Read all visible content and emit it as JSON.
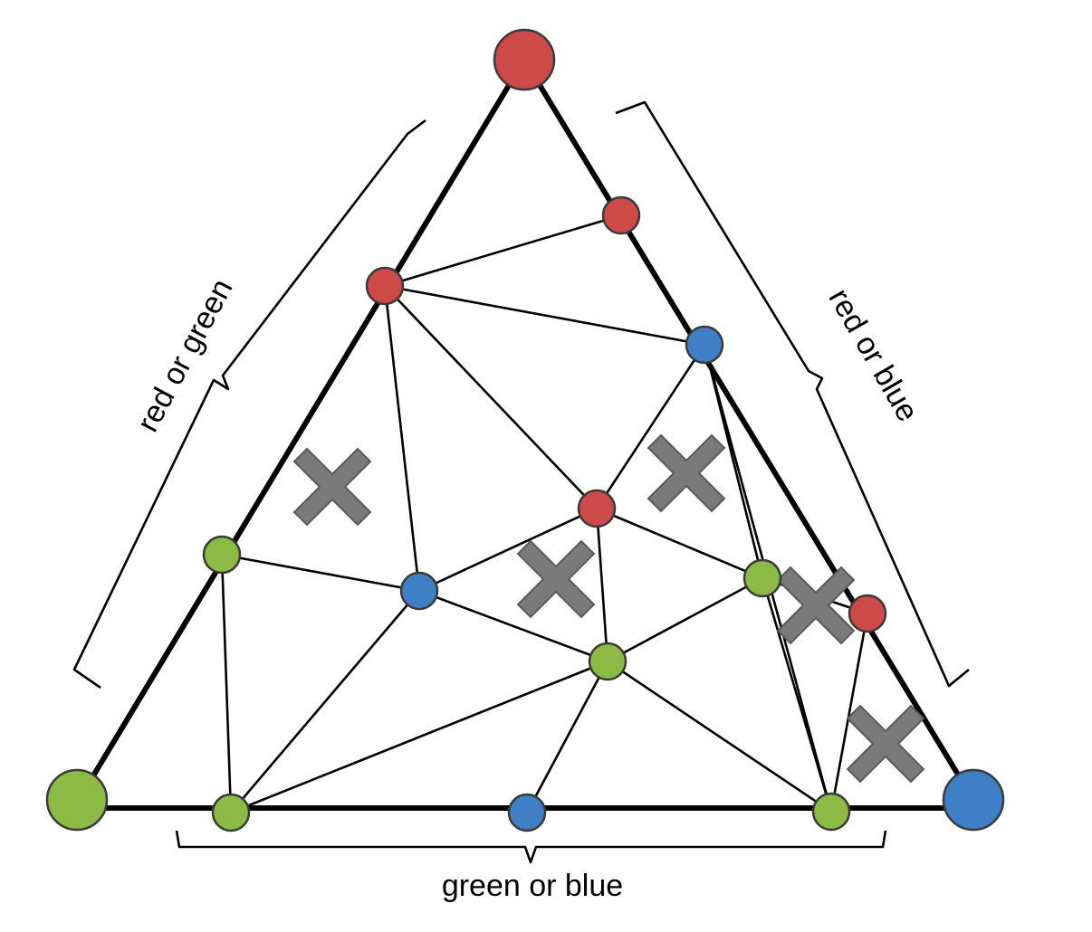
{
  "labels": {
    "left": "red or green",
    "right": "red or blue",
    "bottom": "green or blue"
  },
  "colors": {
    "red": "#cd4a48",
    "green": "#8cbb45",
    "blue": "#3f7fc6",
    "x": "#7a7a7a"
  },
  "node_colors": {
    "top": "red",
    "bottom_left": "green",
    "bottom_right": "blue",
    "r1": "red",
    "r2": "red",
    "b1": "blue",
    "r3": "red",
    "g1": "green",
    "b2": "blue",
    "g2": "green",
    "r4": "red",
    "g3": "green",
    "g4": "green",
    "b3": "blue",
    "g5": "green"
  },
  "marked_cells": 5
}
